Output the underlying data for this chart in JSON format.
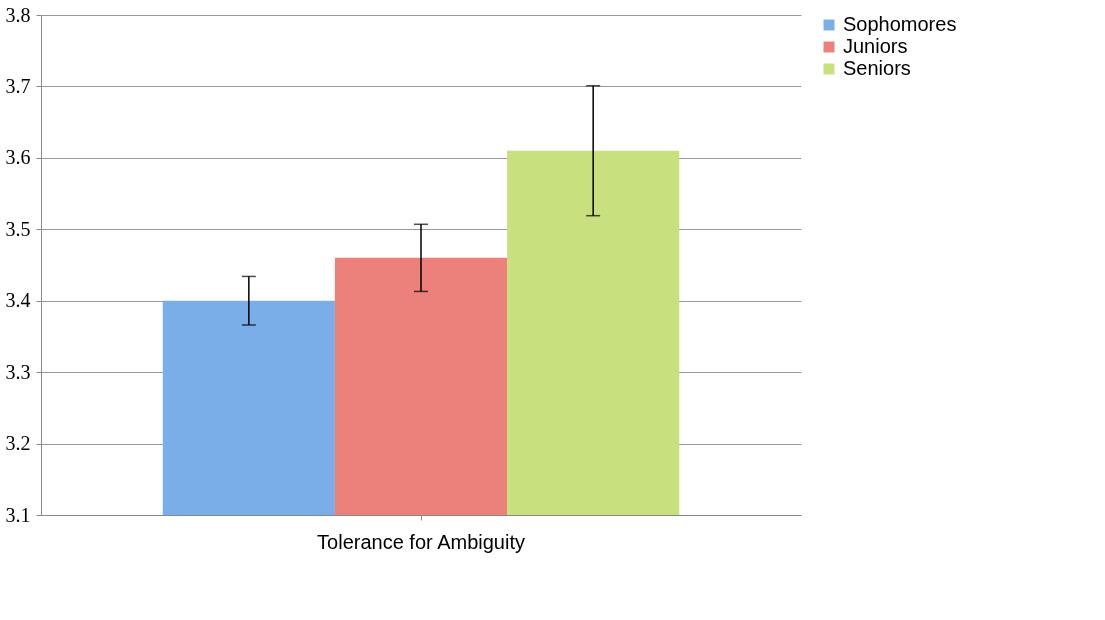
{
  "chart_data": {
    "type": "bar",
    "categories": [
      "Tolerance for Ambiguity"
    ],
    "series": [
      {
        "name": "Sophomores",
        "color": "#7aaee8",
        "values": [
          3.4
        ],
        "errors": [
          0.034
        ]
      },
      {
        "name": "Juniors",
        "color": "#ec807a",
        "values": [
          3.46
        ],
        "errors": [
          0.047
        ]
      },
      {
        "name": "Seniors",
        "color": "#c8e07e",
        "values": [
          3.61
        ],
        "errors": [
          0.091
        ]
      }
    ],
    "ylim": [
      3.1,
      3.8
    ],
    "yticks": [
      3.1,
      3.2,
      3.3,
      3.4,
      3.5,
      3.6,
      3.7,
      3.8
    ],
    "grid": "y",
    "legend": "right"
  }
}
